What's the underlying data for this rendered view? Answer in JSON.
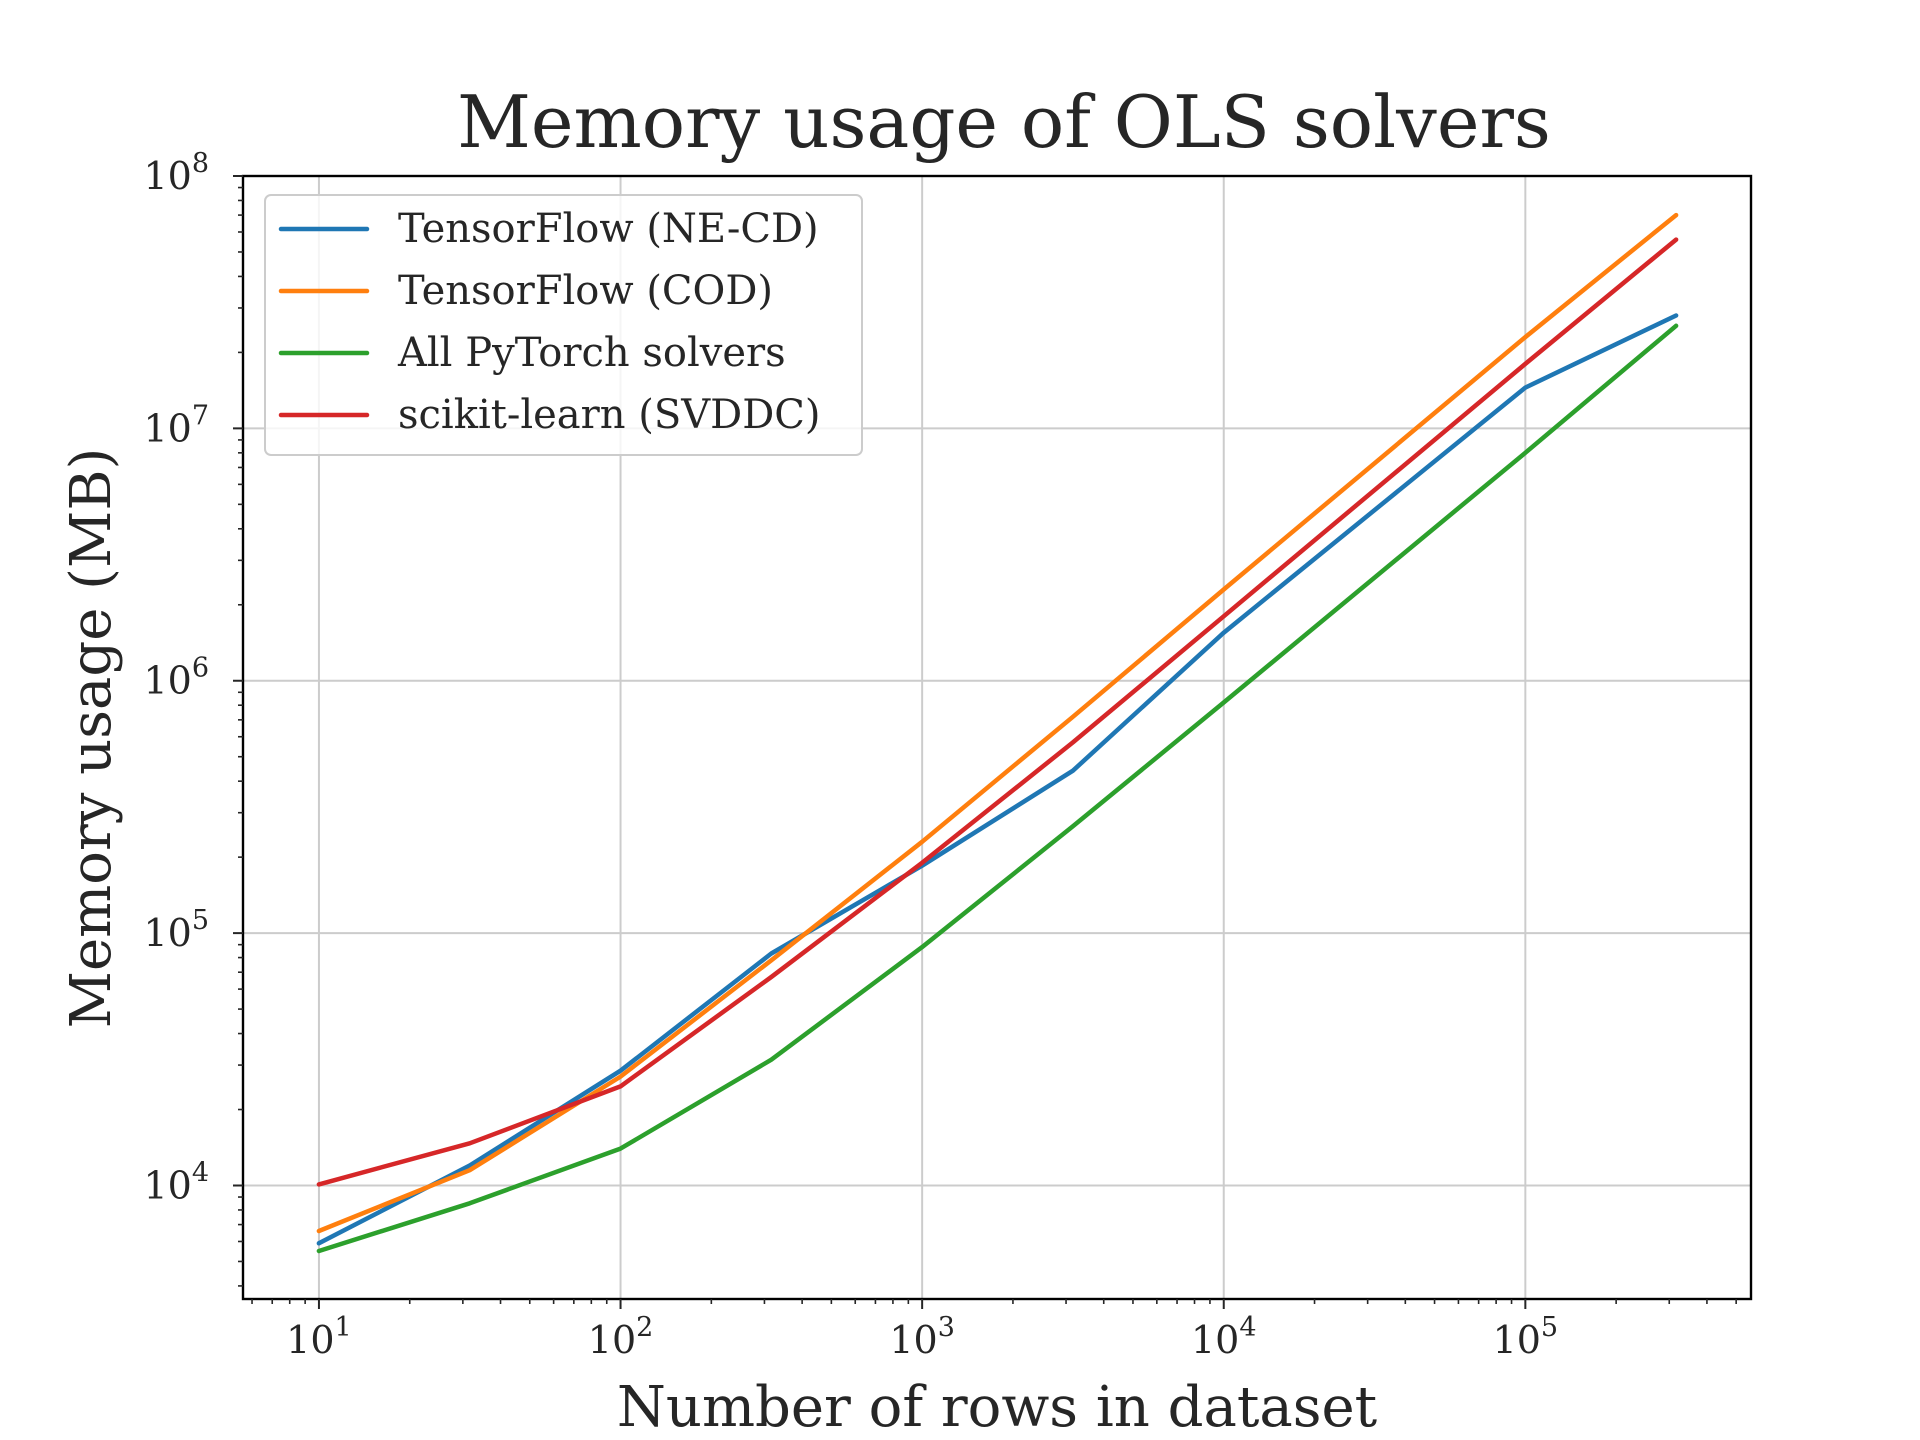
{
  "chart_data": {
    "type": "line",
    "title": "Memory usage of OLS solvers",
    "xlabel": "Number of rows in dataset",
    "ylabel": "Memory usage (MB)",
    "xscale": "log",
    "yscale": "log",
    "xlim": [
      5.6,
      560000
    ],
    "ylim": [
      3550,
      100000000
    ],
    "grid": true,
    "legend_position": "top-left",
    "x_ticks": [
      {
        "value": 10,
        "base": "10",
        "exp": "1"
      },
      {
        "value": 100,
        "base": "10",
        "exp": "2"
      },
      {
        "value": 1000,
        "base": "10",
        "exp": "3"
      },
      {
        "value": 10000,
        "base": "10",
        "exp": "4"
      },
      {
        "value": 100000,
        "base": "10",
        "exp": "5"
      }
    ],
    "y_ticks": [
      {
        "value": 10000,
        "base": "10",
        "exp": "4"
      },
      {
        "value": 100000,
        "base": "10",
        "exp": "5"
      },
      {
        "value": 1000000,
        "base": "10",
        "exp": "6"
      },
      {
        "value": 10000000,
        "base": "10",
        "exp": "7"
      },
      {
        "value": 100000000,
        "base": "10",
        "exp": "8"
      }
    ],
    "x": [
      10,
      31.6,
      100,
      316,
      1000,
      3162,
      10000,
      100000,
      316228
    ],
    "series": [
      {
        "name": "TensorFlow (NE-CD)",
        "color": "#1f77b4",
        "values": [
          5900,
          12000,
          28500,
          83000,
          185000,
          440000,
          1550000,
          14500000,
          28000000
        ]
      },
      {
        "name": "TensorFlow (COD)",
        "color": "#ff7f0e",
        "values": [
          6600,
          11500,
          27000,
          78000,
          230000,
          720000,
          2300000,
          23000000,
          70000000
        ]
      },
      {
        "name": "All PyTorch solvers",
        "color": "#2ca02c",
        "values": [
          5500,
          8500,
          14000,
          31500,
          88000,
          265000,
          820000,
          8000000,
          25500000
        ]
      },
      {
        "name": "scikit-learn (SVDDC)",
        "color": "#d62728",
        "values": [
          10100,
          14700,
          24700,
          67000,
          190000,
          570000,
          1800000,
          18000000,
          56000000
        ]
      }
    ]
  }
}
